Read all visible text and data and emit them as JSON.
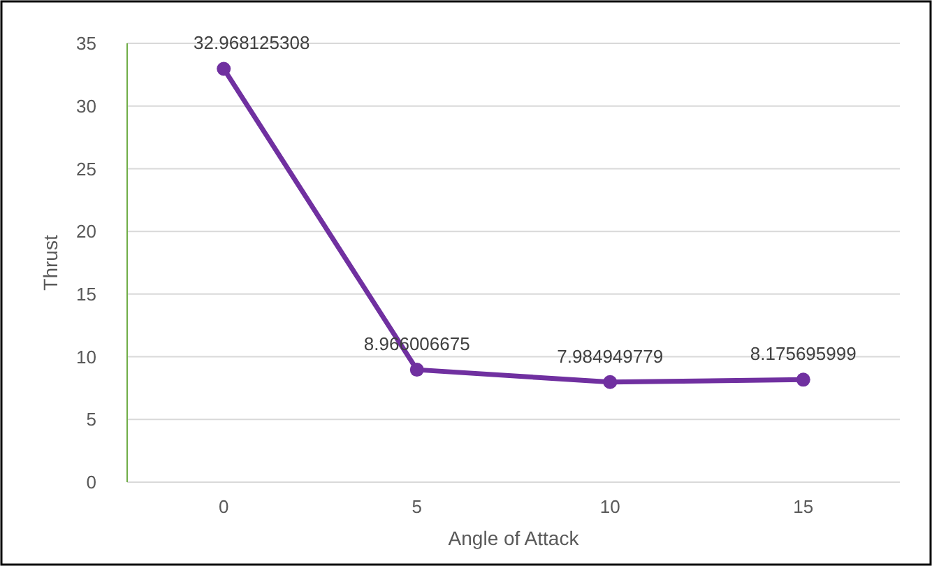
{
  "chart_data": {
    "type": "line",
    "xlabel": "Angle of Attack",
    "ylabel": "Thrust",
    "categories": [
      "0",
      "5",
      "10",
      "15"
    ],
    "series": [
      {
        "color": "#7030a0",
        "values": [
          32.968125308,
          8.966006675,
          7.984949779,
          8.175695999
        ]
      }
    ],
    "ylim": [
      0,
      35
    ],
    "yticks": [
      0,
      5,
      10,
      15,
      20,
      25,
      30,
      35
    ],
    "grid": "y",
    "marker": "circle",
    "data_labels": true
  }
}
